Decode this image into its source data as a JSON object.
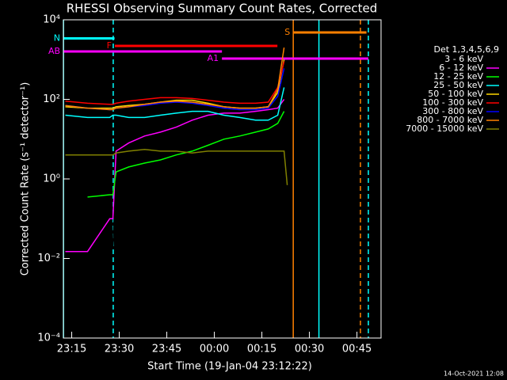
{
  "chart_data": {
    "type": "line",
    "title": "RHESSI Observing Summary Count Rates, Corrected",
    "x_label": "Start Time (19-Jan-04 23:12:22)",
    "y_label": "Corrected Count Rate (s⁻¹ detector⁻¹)",
    "footer": "14-Oct-2021 12:08",
    "legend_title": "Det 1,3,4,5,6,9",
    "log_y": true,
    "xlim": [
      12.37,
      112.6
    ],
    "xticks": [
      {
        "value": 15,
        "label": "23:15"
      },
      {
        "value": 30,
        "label": "23:30"
      },
      {
        "value": 45,
        "label": "23:45"
      },
      {
        "value": 60,
        "label": "00:00"
      },
      {
        "value": 75,
        "label": "00:15"
      },
      {
        "value": 90,
        "label": "00:30"
      },
      {
        "value": 105,
        "label": "00:45"
      }
    ],
    "ylim": [
      0.0001,
      10000
    ],
    "yticks": [
      {
        "value": 10000,
        "label": "10⁴"
      },
      {
        "value": 100,
        "label": "10²"
      },
      {
        "value": 1,
        "label": "10⁰"
      },
      {
        "value": 0.01,
        "label": "10⁻²"
      },
      {
        "value": 0.0001,
        "label": "10⁻⁴"
      }
    ],
    "x": [
      13,
      20,
      27,
      28,
      29,
      33,
      38,
      43,
      48,
      53,
      58,
      63,
      68,
      73,
      77,
      80,
      82,
      83
    ],
    "series": [
      {
        "name": "3 - 6 keV",
        "color": "#000000",
        "values": [
          null,
          null,
          0.02,
          0.02,
          1.5,
          2,
          2.5,
          3,
          3.5,
          4,
          5,
          5,
          6,
          7,
          8,
          10,
          20,
          null
        ]
      },
      {
        "name": "6 - 12 keV",
        "color": "#ff00ff",
        "values": [
          0.015,
          0.015,
          0.1,
          0.1,
          5,
          8,
          12,
          15,
          20,
          30,
          40,
          45,
          45,
          50,
          55,
          60,
          100,
          null
        ]
      },
      {
        "name": "12 - 25 keV",
        "color": "#00ff00",
        "values": [
          null,
          0.35,
          0.4,
          0.4,
          1.5,
          2,
          2.5,
          3,
          4,
          5,
          7,
          10,
          12,
          15,
          18,
          25,
          50,
          null
        ]
      },
      {
        "name": "25 - 50 keV",
        "color": "#00ffff",
        "values": [
          40,
          35,
          35,
          40,
          40,
          35,
          35,
          40,
          45,
          50,
          50,
          40,
          35,
          30,
          30,
          40,
          200,
          null
        ]
      },
      {
        "name": "50 - 100 keV",
        "color": "#ffd700",
        "values": [
          65,
          60,
          60,
          60,
          65,
          70,
          75,
          85,
          95,
          95,
          80,
          65,
          60,
          60,
          65,
          150,
          1000,
          null
        ]
      },
      {
        "name": "100 - 300 keV",
        "color": "#ff0000",
        "values": [
          90,
          80,
          75,
          75,
          80,
          90,
          100,
          110,
          110,
          105,
          95,
          85,
          80,
          80,
          85,
          200,
          900,
          null
        ]
      },
      {
        "name": "300 - 800 keV",
        "color": "#0000ff",
        "values": [
          70,
          60,
          55,
          55,
          60,
          65,
          70,
          80,
          85,
          80,
          70,
          60,
          55,
          55,
          60,
          120,
          600,
          null
        ]
      },
      {
        "name": "800 - 7000 keV",
        "color": "#ff8000",
        "values": [
          70,
          60,
          55,
          55,
          60,
          65,
          75,
          85,
          90,
          85,
          75,
          65,
          60,
          60,
          65,
          180,
          2000,
          null
        ]
      },
      {
        "name": "7000 - 15000 keV",
        "color": "#808000",
        "values": [
          4,
          4,
          4,
          4,
          4.5,
          5,
          5.5,
          5,
          5,
          4.5,
          5,
          5,
          5,
          5,
          5,
          5,
          5,
          0.7
        ]
      }
    ],
    "flags": [
      {
        "label": "N",
        "color": "#00ffff",
        "start": 12.37,
        "end": 28.5,
        "level": 3400
      },
      {
        "label": "F",
        "color": "#ff0000",
        "start": 28.6,
        "end": 79.9,
        "level": 2200
      },
      {
        "label": "AB",
        "color": "#ff00ff",
        "start": 12.4,
        "end": 62.4,
        "level": 1600
      },
      {
        "label": "A1",
        "color": "#ff00ff",
        "start": 62.4,
        "end": 108.6,
        "level": 1060
      },
      {
        "label": "S",
        "color": "#ff8000",
        "start": 84.9,
        "end": 108,
        "level": 4800
      }
    ],
    "markers": [
      {
        "x": 12.4,
        "color": "#00ffff",
        "dashed": false
      },
      {
        "x": 28.1,
        "color": "#00ffff",
        "dashed": true
      },
      {
        "x": 93,
        "color": "#00ffff",
        "dashed": false
      },
      {
        "x": 108.6,
        "color": "#00ffff",
        "dashed": true
      },
      {
        "x": 84.9,
        "color": "#ff8000",
        "dashed": false
      },
      {
        "x": 106.1,
        "color": "#ff8000",
        "dashed": true
      }
    ]
  }
}
